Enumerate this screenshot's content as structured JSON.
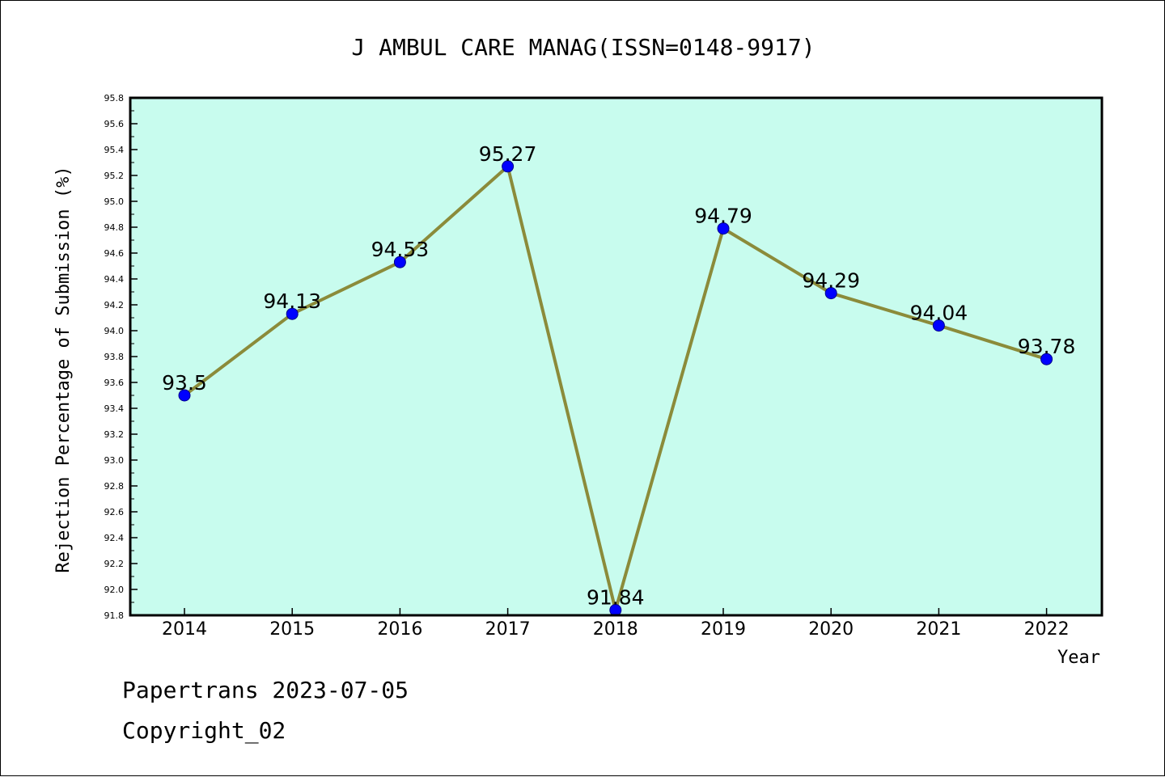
{
  "chart_data": {
    "type": "line",
    "title": "J AMBUL CARE MANAG(ISSN=0148-9917)",
    "xlabel": "Year",
    "ylabel": "Rejection Percentage of Submission (%)",
    "categories": [
      "2014",
      "2015",
      "2016",
      "2017",
      "2018",
      "2019",
      "2020",
      "2021",
      "2022"
    ],
    "series": [
      {
        "values": [
          93.5,
          94.13,
          94.53,
          95.27,
          91.84,
          94.79,
          94.29,
          94.04,
          93.78
        ],
        "labels": [
          "93.5",
          "94.13",
          "94.53",
          "95.27",
          "91.84",
          "94.79",
          "94.29",
          "94.04",
          "93.78"
        ]
      }
    ],
    "ylim": [
      91.8,
      95.8
    ],
    "yticks": [
      "91.8",
      "92.0",
      "92.2",
      "92.4",
      "92.6",
      "92.8",
      "93.0",
      "93.2",
      "93.4",
      "93.6",
      "93.8",
      "94.0",
      "94.2",
      "94.4",
      "94.6",
      "94.8",
      "95.0",
      "95.2",
      "95.4",
      "95.6",
      "95.8"
    ],
    "grid": false,
    "colors": {
      "plot_background": "#c8fcee",
      "line": "#8b8b3a",
      "marker_fill": "#0000ff",
      "marker_edge": "#00008b"
    }
  },
  "footer": {
    "line1": "Papertrans 2023-07-05",
    "line2": "Copyright_02"
  }
}
